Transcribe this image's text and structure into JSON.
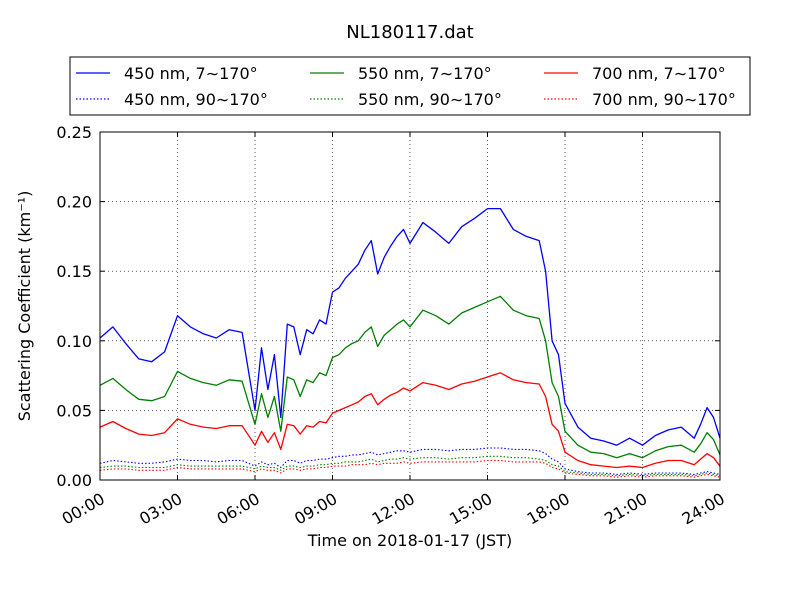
{
  "chart_data": {
    "type": "line",
    "title": "NL180117.dat",
    "xlabel": "Time on 2018-01-17 (JST)",
    "ylabel": "Scattering Coefficient (km⁻¹)",
    "xlim": [
      0,
      24
    ],
    "ylim": [
      0,
      0.25
    ],
    "x_tick_labels": [
      "00:00",
      "03:00",
      "06:00",
      "09:00",
      "12:00",
      "15:00",
      "18:00",
      "21:00",
      "24:00"
    ],
    "y_tick_labels": [
      "0.00",
      "0.05",
      "0.10",
      "0.15",
      "0.20",
      "0.25"
    ],
    "grid": true,
    "legend_position": "top",
    "x": [
      0,
      0.5,
      1,
      1.5,
      2,
      2.5,
      3,
      3.5,
      4,
      4.5,
      5,
      5.5,
      6,
      6.25,
      6.5,
      6.75,
      7,
      7.25,
      7.5,
      7.75,
      8,
      8.25,
      8.5,
      8.75,
      9,
      9.25,
      9.5,
      9.75,
      10,
      10.25,
      10.5,
      10.75,
      11,
      11.25,
      11.5,
      11.75,
      12,
      12.5,
      13,
      13.5,
      14,
      14.5,
      15,
      15.5,
      16,
      16.5,
      17,
      17.25,
      17.5,
      17.75,
      18,
      18.5,
      19,
      19.5,
      20,
      20.5,
      21,
      21.5,
      22,
      22.5,
      23,
      23.25,
      23.5,
      23.75,
      24
    ],
    "series": [
      {
        "name": "450 nm, 7∼170°",
        "color": "#0000ff",
        "dash": false,
        "values": [
          0.102,
          0.11,
          0.098,
          0.087,
          0.085,
          0.092,
          0.118,
          0.11,
          0.105,
          0.102,
          0.108,
          0.106,
          0.05,
          0.095,
          0.065,
          0.09,
          0.045,
          0.112,
          0.11,
          0.09,
          0.108,
          0.105,
          0.115,
          0.112,
          0.135,
          0.138,
          0.145,
          0.15,
          0.155,
          0.165,
          0.172,
          0.148,
          0.16,
          0.168,
          0.175,
          0.18,
          0.17,
          0.185,
          0.178,
          0.17,
          0.182,
          0.188,
          0.195,
          0.195,
          0.18,
          0.175,
          0.172,
          0.15,
          0.1,
          0.09,
          0.055,
          0.038,
          0.03,
          0.028,
          0.025,
          0.03,
          0.025,
          0.032,
          0.036,
          0.038,
          0.03,
          0.04,
          0.052,
          0.045,
          0.03
        ]
      },
      {
        "name": "450 nm, 90∼170°",
        "color": "#0000ff",
        "dash": true,
        "values": [
          0.012,
          0.014,
          0.013,
          0.012,
          0.012,
          0.013,
          0.015,
          0.014,
          0.014,
          0.013,
          0.014,
          0.014,
          0.01,
          0.013,
          0.011,
          0.012,
          0.009,
          0.014,
          0.014,
          0.012,
          0.014,
          0.014,
          0.015,
          0.015,
          0.016,
          0.017,
          0.017,
          0.018,
          0.018,
          0.019,
          0.02,
          0.018,
          0.019,
          0.02,
          0.021,
          0.021,
          0.02,
          0.022,
          0.022,
          0.021,
          0.022,
          0.022,
          0.023,
          0.023,
          0.022,
          0.022,
          0.021,
          0.019,
          0.015,
          0.013,
          0.008,
          0.006,
          0.005,
          0.005,
          0.004,
          0.005,
          0.004,
          0.005,
          0.005,
          0.005,
          0.004,
          0.005,
          0.006,
          0.005,
          0.004
        ]
      },
      {
        "name": "550 nm, 7∼170°",
        "color": "#008000",
        "dash": false,
        "values": [
          0.068,
          0.073,
          0.065,
          0.058,
          0.057,
          0.06,
          0.078,
          0.073,
          0.07,
          0.068,
          0.072,
          0.071,
          0.04,
          0.062,
          0.045,
          0.06,
          0.035,
          0.074,
          0.072,
          0.06,
          0.072,
          0.07,
          0.077,
          0.075,
          0.088,
          0.09,
          0.095,
          0.098,
          0.1,
          0.106,
          0.11,
          0.096,
          0.104,
          0.108,
          0.112,
          0.115,
          0.11,
          0.122,
          0.118,
          0.112,
          0.12,
          0.124,
          0.128,
          0.132,
          0.122,
          0.118,
          0.116,
          0.1,
          0.07,
          0.06,
          0.035,
          0.025,
          0.02,
          0.019,
          0.016,
          0.019,
          0.016,
          0.021,
          0.024,
          0.025,
          0.02,
          0.026,
          0.034,
          0.029,
          0.018
        ]
      },
      {
        "name": "550 nm, 90∼170°",
        "color": "#008000",
        "dash": true,
        "values": [
          0.009,
          0.01,
          0.01,
          0.009,
          0.009,
          0.009,
          0.011,
          0.01,
          0.01,
          0.01,
          0.01,
          0.01,
          0.008,
          0.01,
          0.009,
          0.009,
          0.007,
          0.01,
          0.01,
          0.009,
          0.01,
          0.01,
          0.011,
          0.011,
          0.012,
          0.012,
          0.013,
          0.013,
          0.013,
          0.014,
          0.015,
          0.013,
          0.014,
          0.015,
          0.015,
          0.016,
          0.015,
          0.016,
          0.016,
          0.015,
          0.016,
          0.016,
          0.017,
          0.017,
          0.016,
          0.016,
          0.015,
          0.014,
          0.011,
          0.01,
          0.006,
          0.005,
          0.004,
          0.004,
          0.003,
          0.004,
          0.003,
          0.004,
          0.004,
          0.004,
          0.003,
          0.004,
          0.005,
          0.004,
          0.003
        ]
      },
      {
        "name": "700 nm, 7∼170°",
        "color": "#ff0000",
        "dash": false,
        "values": [
          0.038,
          0.042,
          0.037,
          0.033,
          0.032,
          0.034,
          0.044,
          0.04,
          0.038,
          0.037,
          0.039,
          0.039,
          0.025,
          0.035,
          0.027,
          0.034,
          0.022,
          0.04,
          0.039,
          0.033,
          0.039,
          0.038,
          0.042,
          0.041,
          0.048,
          0.05,
          0.052,
          0.054,
          0.056,
          0.06,
          0.062,
          0.054,
          0.058,
          0.061,
          0.063,
          0.066,
          0.064,
          0.07,
          0.068,
          0.065,
          0.069,
          0.071,
          0.074,
          0.077,
          0.072,
          0.07,
          0.069,
          0.06,
          0.04,
          0.035,
          0.02,
          0.014,
          0.011,
          0.01,
          0.009,
          0.01,
          0.009,
          0.012,
          0.014,
          0.014,
          0.011,
          0.015,
          0.019,
          0.016,
          0.01
        ]
      },
      {
        "name": "700 nm, 90∼170°",
        "color": "#ff0000",
        "dash": true,
        "values": [
          0.007,
          0.008,
          0.008,
          0.007,
          0.007,
          0.007,
          0.009,
          0.008,
          0.008,
          0.008,
          0.008,
          0.008,
          0.006,
          0.008,
          0.007,
          0.007,
          0.005,
          0.008,
          0.008,
          0.007,
          0.008,
          0.008,
          0.009,
          0.009,
          0.01,
          0.01,
          0.01,
          0.011,
          0.011,
          0.011,
          0.012,
          0.011,
          0.012,
          0.012,
          0.012,
          0.013,
          0.012,
          0.013,
          0.013,
          0.013,
          0.013,
          0.013,
          0.014,
          0.014,
          0.013,
          0.013,
          0.013,
          0.012,
          0.009,
          0.008,
          0.005,
          0.004,
          0.003,
          0.003,
          0.002,
          0.003,
          0.002,
          0.003,
          0.003,
          0.003,
          0.002,
          0.003,
          0.004,
          0.003,
          0.002
        ]
      }
    ]
  }
}
